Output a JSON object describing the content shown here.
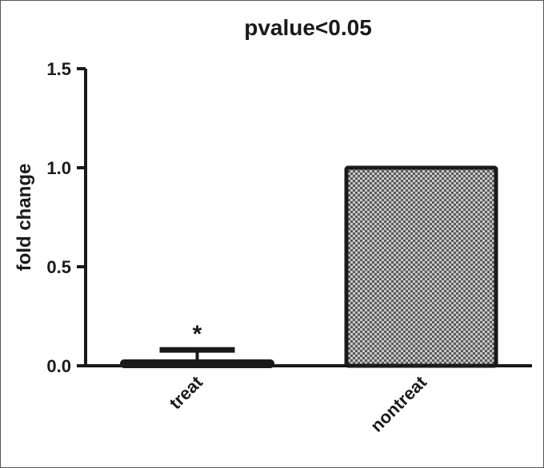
{
  "chart_data": {
    "type": "bar",
    "title": "pvalue<0.05",
    "xlabel": "",
    "ylabel": "fold change",
    "ylim": [
      0,
      1.5
    ],
    "yticks": [
      "0.0",
      "0.5",
      "1.0",
      "1.5"
    ],
    "categories": [
      "treat",
      "nontreat"
    ],
    "values": [
      0.02,
      1.0
    ],
    "errors": [
      0.06,
      0
    ],
    "annotations": [
      {
        "category": "treat",
        "text": "*"
      }
    ],
    "bar_colors": [
      "#1a1a1a",
      "#9a9a9a"
    ],
    "grid": false,
    "legend": "none"
  }
}
